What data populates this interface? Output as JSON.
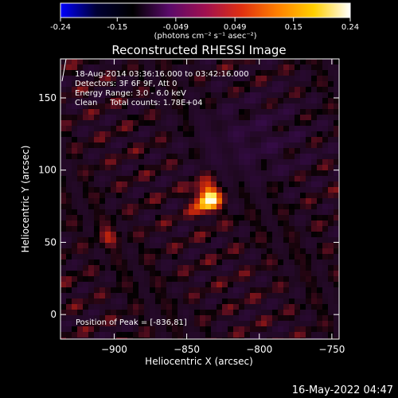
{
  "chart_data": {
    "type": "heatmap",
    "title": "Reconstructed RHESSI Image",
    "xlabel": "Heliocentric X (arcsec)",
    "ylabel": "Heliocentric Y (arcsec)",
    "colorbar": {
      "label": "(photons cm⁻² s⁻¹ asec⁻²)",
      "range": [
        -0.24,
        0.24
      ],
      "ticks": [
        "-0.24",
        "-0.15",
        "-0.049",
        "0.049",
        "0.15",
        "0.24"
      ],
      "tick_values": [
        -0.24,
        -0.146,
        -0.049,
        0.049,
        0.146,
        0.24
      ],
      "colormap_stops": [
        "#0000ff",
        "#000033",
        "#000000",
        "#5a0a6a",
        "#a01050",
        "#e03010",
        "#ff8000",
        "#ffd000",
        "#ffffff"
      ]
    },
    "x_range": [
      -937,
      -745
    ],
    "y_range": [
      -17,
      177
    ],
    "x_ticks": [
      -900,
      -850,
      -800,
      -750
    ],
    "y_ticks": [
      0,
      50,
      100,
      150
    ],
    "peak": {
      "x": -836,
      "y": 81,
      "value": 0.24
    },
    "secondary_source": {
      "x": -904,
      "y": 54,
      "value": 0.12
    },
    "annotations": [
      "18-Aug-2014 03:36:16.000 to 03:42:16.000",
      "Detectors: 3F 6F 9F, Att 0",
      "Energy Range: 3.0 - 6.0 keV",
      "Clean     Total counts: 1.78E+04"
    ],
    "peak_label": "Position of Peak = [-836,81]"
  },
  "timestamp": "16-May-2022 04:47"
}
